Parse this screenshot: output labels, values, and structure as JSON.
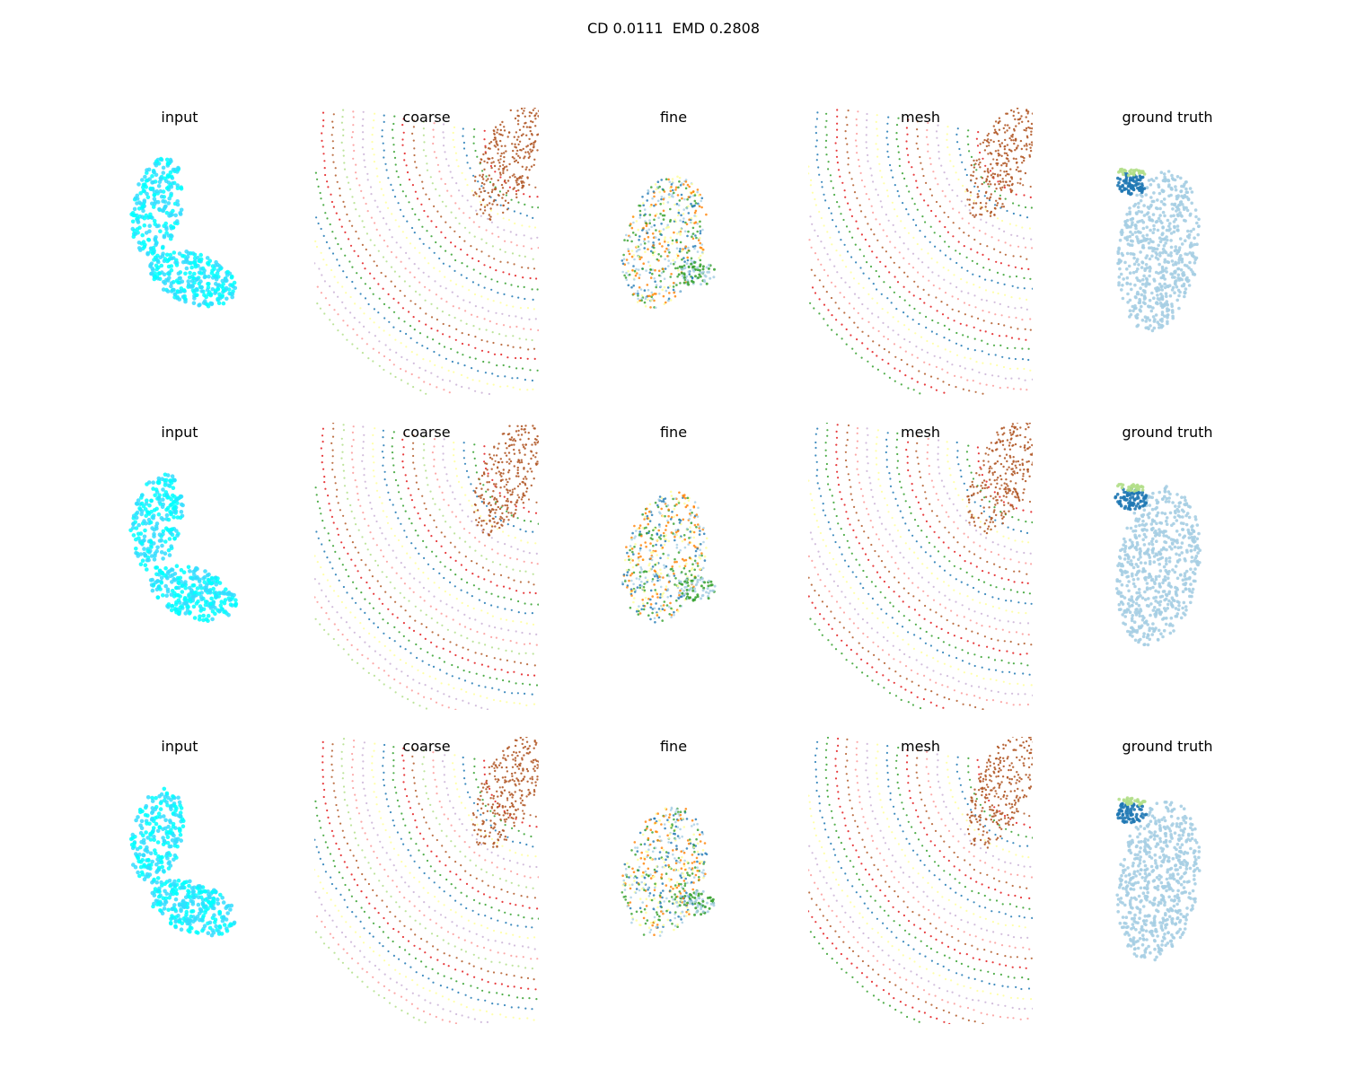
{
  "suptitle": "CD 0.0111  EMD 0.2808",
  "columns": [
    "input",
    "coarse",
    "fine",
    "mesh",
    "ground truth"
  ],
  "rows": [
    {
      "panels": [
        "input",
        "coarse",
        "fine",
        "mesh",
        "ground truth"
      ]
    },
    {
      "panels": [
        "input",
        "coarse",
        "fine",
        "mesh",
        "ground truth"
      ]
    },
    {
      "panels": [
        "input",
        "coarse",
        "fine",
        "mesh",
        "ground truth"
      ]
    }
  ],
  "colors": {
    "input": [
      "#33ddff",
      "#00ffff"
    ],
    "coarse": [
      "#b15928",
      "#e31a1c",
      "#33a02c",
      "#1f78b4",
      "#ffff99",
      "#cab2d6",
      "#fb9a99",
      "#b2df8a"
    ],
    "fine": [
      "#ff7f00",
      "#1f78b4",
      "#33a02c",
      "#a6cee3",
      "#ffff99"
    ],
    "mesh": [
      "#b15928",
      "#e31a1c",
      "#33a02c",
      "#1f78b4",
      "#ffff99",
      "#cab2d6",
      "#fb9a99"
    ],
    "ground_truth": [
      "#a6cee3",
      "#1f78b4",
      "#b2df8a"
    ]
  }
}
